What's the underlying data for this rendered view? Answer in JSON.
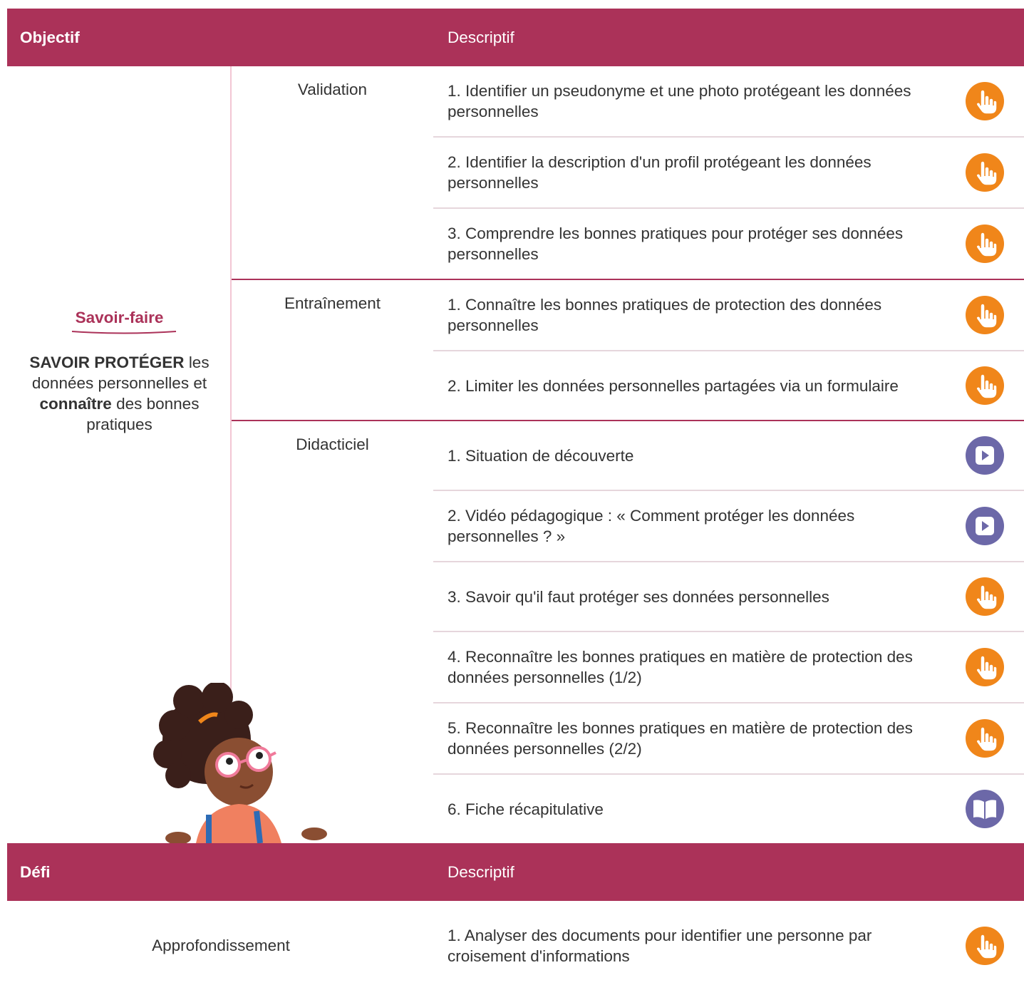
{
  "objective_table": {
    "headers": [
      "Objectif",
      "Descriptif"
    ],
    "objective": {
      "label": "Savoir-faire",
      "description": [
        {
          "text": "SAVOIR PROTÉGER",
          "bold": true
        },
        {
          "text": "les données personnelles et",
          "bold": false
        },
        {
          "text": "connaître",
          "bold": true
        },
        {
          "text": "des bonnes pratiques",
          "bold": false
        }
      ]
    },
    "groups": [
      {
        "label": "Validation",
        "items": [
          {
            "text": "1. Identifier un pseudonyme et une photo protégeant les données personnelles",
            "icon": "hand"
          },
          {
            "text": "2.  Identifier la description d'un profil protégeant les données personnelles",
            "icon": "hand"
          },
          {
            "text": "3. Comprendre les bonnes pratiques pour protéger ses données personnelles",
            "icon": "hand"
          }
        ]
      },
      {
        "label": "Entraînement",
        "items": [
          {
            "text": "1. Connaître les bonnes pratiques de protection des données personnelles",
            "icon": "hand"
          },
          {
            "text": "2. Limiter les données personnelles partagées via un formulaire",
            "icon": "hand"
          }
        ]
      },
      {
        "label": "Didacticiel",
        "items": [
          {
            "text": "1. Situation de découverte",
            "icon": "play"
          },
          {
            "text": "2. Vidéo pédagogique : « Comment protéger les données personnelles ? »",
            "icon": "play"
          },
          {
            "text": "3. Savoir qu'il faut protéger ses données personnelles",
            "icon": "hand"
          },
          {
            "text": "4. Reconnaître les bonnes pratiques en matière de protection des données personnelles (1/2)",
            "icon": "hand"
          },
          {
            "text": "5. Reconnaître les bonnes pratiques en matière de protection des données personnelles (2/2)",
            "icon": "hand"
          },
          {
            "text": "6.  Fiche récapitulative",
            "icon": "book"
          }
        ]
      }
    ]
  },
  "challenge_table": {
    "headers": [
      "Défi",
      "Descriptif"
    ],
    "rows": [
      {
        "label": "Approfondissement",
        "items": [
          {
            "text": "1. Analyser des documents pour identifier une personne par croisement d'informations",
            "icon": "hand"
          }
        ]
      }
    ]
  }
}
